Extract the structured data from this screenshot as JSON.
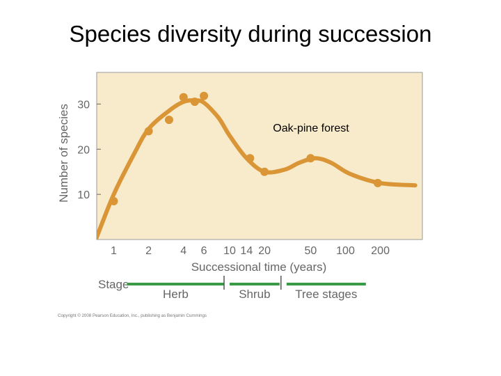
{
  "slide": {
    "title": "Species diversity during succession"
  },
  "chart_data": {
    "type": "scatter",
    "title": "",
    "xlabel": "Successional time (years)",
    "ylabel": "Number of species",
    "x_scale": "log",
    "xlim": [
      0.7,
      400
    ],
    "ylim": [
      0,
      37
    ],
    "yticks": [
      10,
      20,
      30
    ],
    "xticks": [
      1,
      2,
      4,
      6,
      10,
      14,
      20,
      50,
      100,
      200
    ],
    "points": [
      {
        "x": 1,
        "y": 8.5
      },
      {
        "x": 2,
        "y": 24
      },
      {
        "x": 3,
        "y": 26.5
      },
      {
        "x": 4,
        "y": 31.5
      },
      {
        "x": 5,
        "y": 30.5
      },
      {
        "x": 6,
        "y": 31.8
      },
      {
        "x": 15,
        "y": 18
      },
      {
        "x": 20,
        "y": 15
      },
      {
        "x": 50,
        "y": 18
      },
      {
        "x": 190,
        "y": 12.5
      }
    ],
    "trend": [
      {
        "x": 0.7,
        "y": 0
      },
      {
        "x": 1,
        "y": 10
      },
      {
        "x": 1.5,
        "y": 19
      },
      {
        "x": 2,
        "y": 24.5
      },
      {
        "x": 3,
        "y": 28.5
      },
      {
        "x": 4,
        "y": 30.5
      },
      {
        "x": 5,
        "y": 30.8
      },
      {
        "x": 6,
        "y": 30.3
      },
      {
        "x": 8,
        "y": 27
      },
      {
        "x": 10,
        "y": 23
      },
      {
        "x": 14,
        "y": 18
      },
      {
        "x": 20,
        "y": 15
      },
      {
        "x": 30,
        "y": 15.5
      },
      {
        "x": 40,
        "y": 17
      },
      {
        "x": 55,
        "y": 18
      },
      {
        "x": 75,
        "y": 17
      },
      {
        "x": 110,
        "y": 14.5
      },
      {
        "x": 200,
        "y": 12.5
      },
      {
        "x": 400,
        "y": 12
      }
    ],
    "annotation": "Oak-pine forest",
    "stages": {
      "label": "Stage",
      "items": [
        {
          "name": "Herb",
          "from": 1.3,
          "to": 9
        },
        {
          "name": "Shrub",
          "from": 10,
          "to": 27
        },
        {
          "name": "Tree stages",
          "from": 31,
          "to": 150
        }
      ]
    },
    "copyright": "Copyright © 2008 Pearson Education, Inc., publishing as Benjamin Cummings",
    "colors": {
      "plot_bg": "#f8ebcb",
      "curve": "#d99536",
      "points": "#d99536",
      "axis_text": "#666666",
      "stage_bar": "#3a9a46",
      "frame": "#999999"
    }
  }
}
